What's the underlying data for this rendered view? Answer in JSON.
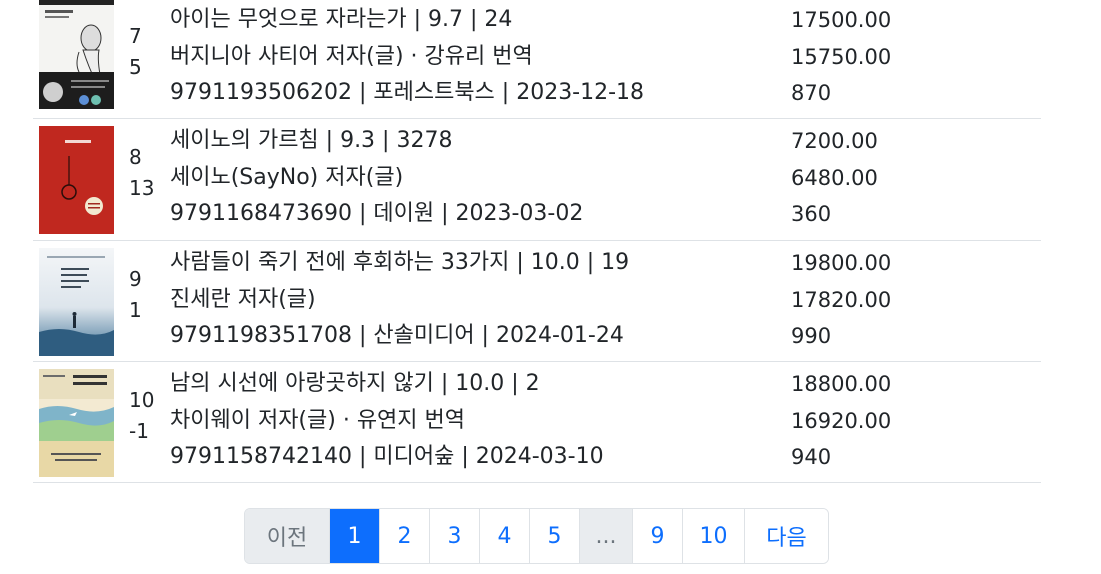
{
  "books": [
    {
      "rank_lines": [
        "7",
        "5"
      ],
      "title_line": "아이는 무엇으로 자라는가 | 9.7 | 24",
      "author_line": "버지니아 사티어 저자(글) · 강유리 번역",
      "meta_line": "9791193506202 | 포레스트북스 | 2023-12-18",
      "list_price": "17500.00",
      "sale_price": "15750.00",
      "points": "870",
      "cover_title": "아이는 무엇으로 자라는가"
    },
    {
      "rank_lines": [
        "8",
        "13"
      ],
      "title_line": "세이노의 가르침 | 9.3 | 3278",
      "author_line": "세이노(SayNo) 저자(글)",
      "meta_line": "9791168473690 | 데이원 | 2023-03-02",
      "list_price": "7200.00",
      "sale_price": "6480.00",
      "points": "360",
      "cover_title": "세이노의 가르침"
    },
    {
      "rank_lines": [
        "9",
        "1"
      ],
      "title_line": "사람들이 죽기 전에 후회하는 33가지 | 10.0 | 19",
      "author_line": "진세란 저자(글)",
      "meta_line": "9791198351708 | 산솔미디어 | 2024-01-24",
      "list_price": "19800.00",
      "sale_price": "17820.00",
      "points": "990",
      "cover_title": "사람들이 죽기 전에 후회하는 33가지"
    },
    {
      "rank_lines": [
        "10",
        "-1"
      ],
      "title_line": "남의 시선에 아랑곳하지 않기 | 10.0 | 2",
      "author_line": "차이웨이 저자(글) · 유연지 번역",
      "meta_line": "9791158742140 | 미디어숲 | 2024-03-10",
      "list_price": "18800.00",
      "sale_price": "16920.00",
      "points": "940",
      "cover_title": "남의 시선에 아랑곳하지 않기"
    }
  ],
  "pagination": {
    "prev": "이전",
    "pages": [
      "1",
      "2",
      "3",
      "4",
      "5"
    ],
    "ellipsis": "...",
    "tail_pages": [
      "9",
      "10"
    ],
    "next": "다음",
    "active_page": "1"
  },
  "colors": {
    "accent": "#0d6efd",
    "border": "#dee2e6",
    "disabled_bg": "#e9ecef"
  }
}
